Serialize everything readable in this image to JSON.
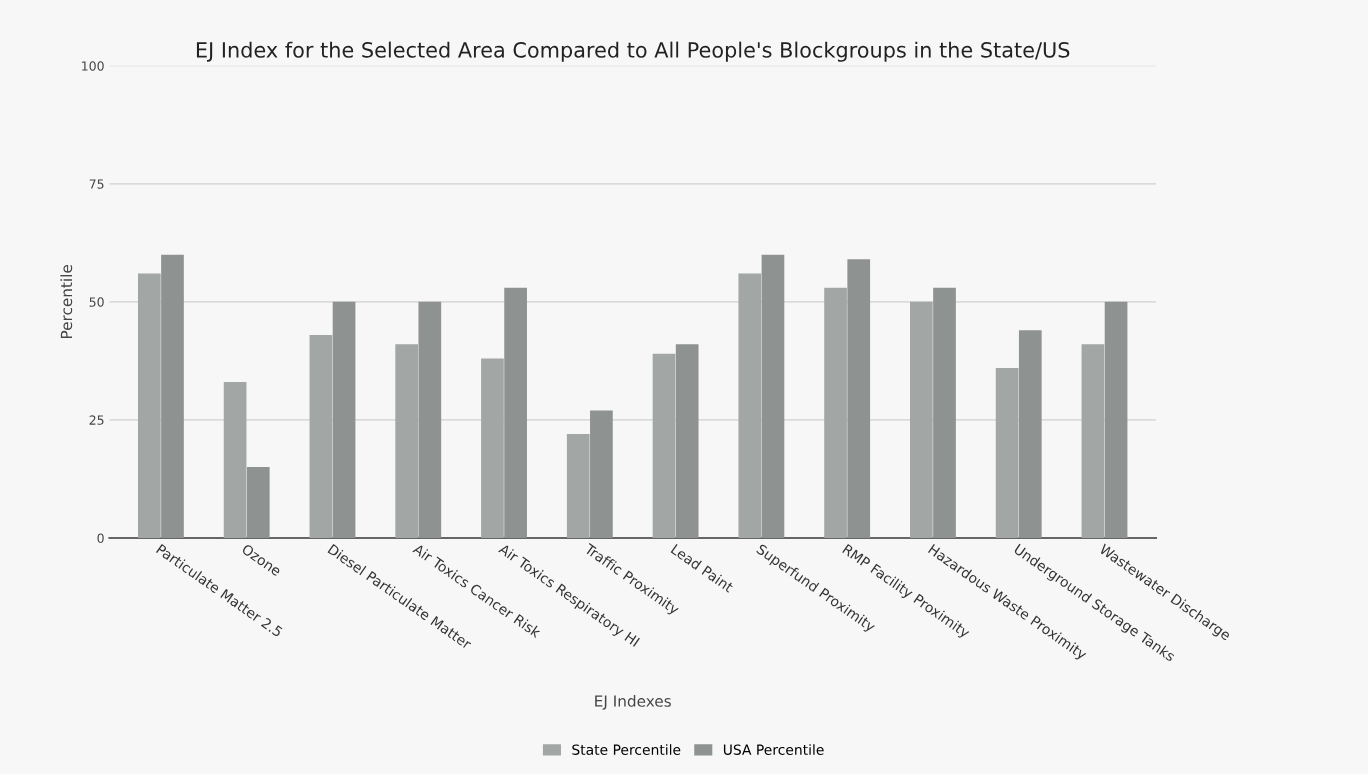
{
  "chart_data": {
    "type": "bar",
    "title": "EJ Index for the Selected Area Compared to All People's Blockgroups in the State/US",
    "xlabel": "EJ Indexes",
    "ylabel": "Percentile",
    "categories": [
      "Particulate Matter 2.5",
      "Ozone",
      "Diesel Particulate Matter",
      "Air Toxics Cancer Risk",
      "Air Toxics Respiratory HI",
      "Traffic Proximity",
      "Lead Paint",
      "Superfund Proximity",
      "RMP Facility Proximity",
      "Hazardous Waste Proximity",
      "Underground Storage Tanks",
      "Wastewater Discharge"
    ],
    "series": [
      {
        "name": "State Percentile",
        "color": "#a2a6a4",
        "values": [
          56,
          33,
          43,
          41,
          38,
          22,
          39,
          56,
          53,
          50,
          36,
          41
        ]
      },
      {
        "name": "USA Percentile",
        "color": "#8e9290",
        "values": [
          60,
          15,
          50,
          50,
          53,
          27,
          41,
          60,
          59,
          53,
          44,
          50
        ]
      }
    ],
    "ylim": [
      0,
      100
    ],
    "yticks": [
      0,
      25,
      50,
      75,
      100
    ],
    "grid": "y",
    "legend": "bottom"
  }
}
